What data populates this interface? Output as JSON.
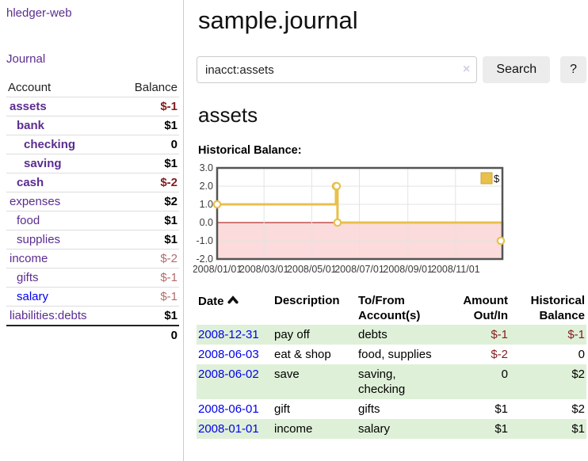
{
  "app": {
    "brand": "hledger-web",
    "nav_journal": "Journal"
  },
  "colors": {
    "link_purple": "#5b2d90",
    "link_blue": "#0000ee",
    "negative_strong": "#841c1c",
    "negative_muted": "#b36b6b",
    "row_stripe_green": "#dff0d8",
    "series_gold": "#e9c04b",
    "zero_line_red": "#a40000",
    "chart_negative_region": "#fbdbdb",
    "button_gray": "#ececec"
  },
  "sidebar": {
    "header": {
      "account": "Account",
      "balance": "Balance"
    },
    "accounts": [
      {
        "name": "assets",
        "depth": 0,
        "in_account": true,
        "balance": "$-1",
        "neg": "strong"
      },
      {
        "name": "bank",
        "depth": 1,
        "in_account": true,
        "balance": "$1",
        "neg": "none"
      },
      {
        "name": "checking",
        "depth": 2,
        "in_account": true,
        "balance": "0",
        "neg": "none"
      },
      {
        "name": "saving",
        "depth": 2,
        "in_account": true,
        "balance": "$1",
        "neg": "none"
      },
      {
        "name": "cash",
        "depth": 1,
        "in_account": true,
        "balance": "$-2",
        "neg": "strong"
      },
      {
        "name": "expenses",
        "depth": 0,
        "in_account": false,
        "balance": "$2",
        "neg": "none"
      },
      {
        "name": "food",
        "depth": 1,
        "in_account": false,
        "balance": "$1",
        "neg": "none"
      },
      {
        "name": "supplies",
        "depth": 1,
        "in_account": false,
        "balance": "$1",
        "neg": "none"
      },
      {
        "name": "income",
        "depth": 0,
        "in_account": false,
        "balance": "$-2",
        "neg": "muted"
      },
      {
        "name": "gifts",
        "depth": 1,
        "in_account": false,
        "balance": "$-1",
        "neg": "muted"
      },
      {
        "name": "salary",
        "depth": 1,
        "in_account": false,
        "balance": "$-1",
        "neg": "muted",
        "link_color": "blue"
      },
      {
        "name": "liabilities:debts",
        "depth": 0,
        "in_account": false,
        "balance": "$1",
        "neg": "none"
      }
    ],
    "total": "0"
  },
  "main": {
    "title": "sample.journal",
    "search": {
      "value": "inacct:assets",
      "clear_icon": "×",
      "button_label": "Search",
      "help_label": "?"
    },
    "account_heading": "assets",
    "chart_title": "Historical Balance:"
  },
  "chart_data": {
    "type": "line",
    "step": true,
    "title": "Historical Balance",
    "series": [
      {
        "name": "$",
        "color": "#e9c04b",
        "points": [
          [
            "2008-01-01",
            1
          ],
          [
            "2008-06-01",
            2
          ],
          [
            "2008-06-02",
            2
          ],
          [
            "2008-06-03",
            0
          ],
          [
            "2008-12-31",
            -1
          ]
        ]
      }
    ],
    "ylim": [
      -2.0,
      3.0
    ],
    "yticks": [
      3.0,
      2.0,
      1.0,
      0.0,
      -1.0,
      -2.0
    ],
    "xticks": [
      "2008/01/01",
      "2008/03/01",
      "2008/05/01",
      "2008/07/01",
      "2008/09/01",
      "2008/11/01"
    ],
    "x_range": [
      "2008-01-01",
      "2008-12-31"
    ],
    "grid": true,
    "negative_region_fill": "#fbdbdb",
    "zero_line_color": "#a40000",
    "legend": {
      "label": "$",
      "position": "top-right"
    }
  },
  "register": {
    "headers": {
      "date": "Date",
      "sort_icon": "chevron-up",
      "description": "Description",
      "tofrom": "To/From Account(s)",
      "amount": "Amount Out/In",
      "balance": "Historical Balance"
    },
    "rows": [
      {
        "date": "2008-12-31",
        "description": "pay off",
        "tofrom": "debts",
        "amount": "$-1",
        "amount_neg": true,
        "balance": "$-1",
        "balance_neg": true,
        "stripe": true
      },
      {
        "date": "2008-06-03",
        "description": "eat & shop",
        "tofrom": "food, supplies",
        "amount": "$-2",
        "amount_neg": true,
        "balance": "0",
        "balance_neg": false,
        "stripe": false
      },
      {
        "date": "2008-06-02",
        "description": "save",
        "tofrom": "saving,\nchecking",
        "amount": "0",
        "amount_neg": false,
        "balance": "$2",
        "balance_neg": false,
        "stripe": true
      },
      {
        "date": "2008-06-01",
        "description": "gift",
        "tofrom": "gifts",
        "amount": "$1",
        "amount_neg": false,
        "balance": "$2",
        "balance_neg": false,
        "stripe": false
      },
      {
        "date": "2008-01-01",
        "description": "income",
        "tofrom": "salary",
        "amount": "$1",
        "amount_neg": false,
        "balance": "$1",
        "balance_neg": false,
        "stripe": true
      }
    ]
  }
}
